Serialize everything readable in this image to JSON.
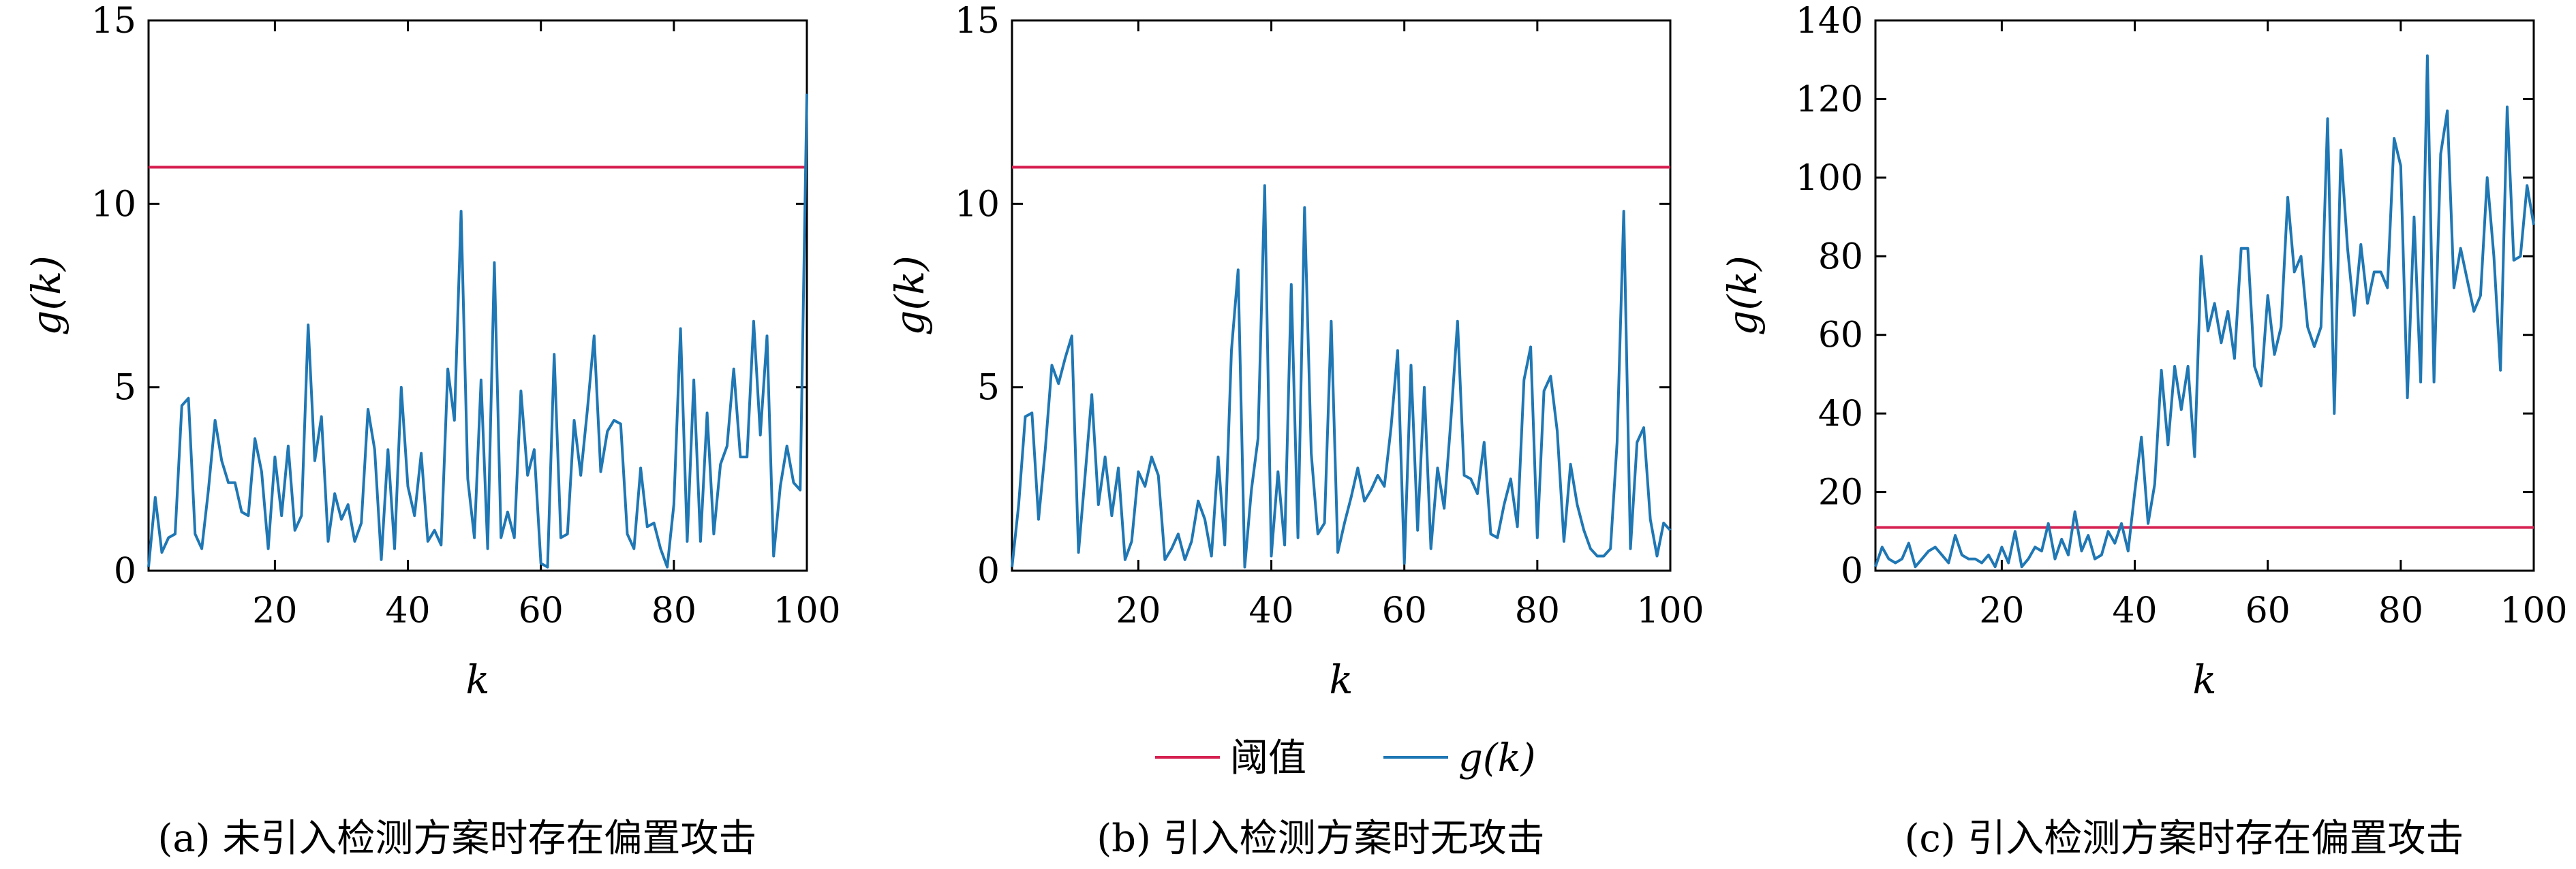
{
  "legend": {
    "threshold_label": "阈值",
    "g_label": "g(k)"
  },
  "colors": {
    "threshold": "#d62050",
    "g": "#1f77b4",
    "frame": "#000000"
  },
  "chart_data": [
    {
      "type": "line",
      "caption": "(a) 未引入检测方案时存在偏置攻击",
      "xlabel": "k",
      "ylabel": "g(k)",
      "xlim": [
        1,
        100
      ],
      "ylim": [
        0,
        15
      ],
      "xticks": [
        20,
        40,
        60,
        80,
        100
      ],
      "yticks": [
        0,
        5,
        10,
        15
      ],
      "threshold": 11,
      "x_start": 1,
      "series": [
        {
          "name": "g(k)",
          "values": [
            0.1,
            2.0,
            0.5,
            0.9,
            1.0,
            4.5,
            4.7,
            1.0,
            0.6,
            2.2,
            4.1,
            3.0,
            2.4,
            2.4,
            1.6,
            1.5,
            3.6,
            2.7,
            0.6,
            3.1,
            1.5,
            3.4,
            1.1,
            1.5,
            6.7,
            3.0,
            4.2,
            0.8,
            2.1,
            1.4,
            1.8,
            0.8,
            1.3,
            4.4,
            3.3,
            0.3,
            3.3,
            0.6,
            5.0,
            2.3,
            1.5,
            3.2,
            0.8,
            1.1,
            0.7,
            5.5,
            4.1,
            9.8,
            2.5,
            0.9,
            5.2,
            0.6,
            8.4,
            0.9,
            1.6,
            0.9,
            4.9,
            2.6,
            3.3,
            0.2,
            0.1,
            5.9,
            0.9,
            1.0,
            4.1,
            2.6,
            4.4,
            6.4,
            2.7,
            3.8,
            4.1,
            4.0,
            1.0,
            0.6,
            2.8,
            1.2,
            1.3,
            0.6,
            0.1,
            1.8,
            6.6,
            0.8,
            5.2,
            0.8,
            4.3,
            1.0,
            2.9,
            3.4,
            5.5,
            3.1,
            3.1,
            6.8,
            3.7,
            6.4,
            0.4,
            2.3,
            3.4,
            2.4,
            2.2,
            13.0
          ]
        }
      ]
    },
    {
      "type": "line",
      "caption": "(b) 引入检测方案时无攻击",
      "xlabel": "k",
      "ylabel": "g(k)",
      "xlim": [
        1,
        100
      ],
      "ylim": [
        0,
        15
      ],
      "xticks": [
        20,
        40,
        60,
        80,
        100
      ],
      "yticks": [
        0,
        5,
        10,
        15
      ],
      "threshold": 11,
      "x_start": 1,
      "series": [
        {
          "name": "g(k)",
          "values": [
            0.1,
            1.8,
            4.2,
            4.3,
            1.4,
            3.3,
            5.6,
            5.1,
            5.8,
            6.4,
            0.5,
            2.6,
            4.8,
            1.8,
            3.1,
            1.5,
            2.8,
            0.3,
            0.8,
            2.7,
            2.3,
            3.1,
            2.6,
            0.3,
            0.6,
            1.0,
            0.3,
            0.8,
            1.9,
            1.4,
            0.4,
            3.1,
            0.7,
            6.0,
            8.2,
            0.1,
            2.2,
            3.6,
            10.5,
            0.4,
            2.7,
            0.7,
            7.8,
            0.9,
            9.9,
            3.2,
            1.0,
            1.3,
            6.8,
            0.5,
            1.3,
            2.0,
            2.8,
            1.9,
            2.2,
            2.6,
            2.3,
            3.9,
            6.0,
            0.2,
            5.6,
            1.1,
            5.0,
            0.6,
            2.8,
            1.7,
            4.1,
            6.8,
            2.6,
            2.5,
            2.1,
            3.5,
            1.0,
            0.9,
            1.8,
            2.5,
            1.2,
            5.2,
            6.1,
            0.9,
            4.9,
            5.3,
            3.8,
            0.8,
            2.9,
            1.8,
            1.1,
            0.6,
            0.4,
            0.4,
            0.6,
            3.5,
            9.8,
            0.6,
            3.5,
            3.9,
            1.4,
            0.4,
            1.3,
            1.1
          ]
        }
      ]
    },
    {
      "type": "line",
      "caption": "(c) 引入检测方案时存在偏置攻击",
      "xlabel": "k",
      "ylabel": "g(k)",
      "xlim": [
        1,
        100
      ],
      "ylim": [
        0,
        140
      ],
      "xticks": [
        20,
        40,
        60,
        80,
        100
      ],
      "yticks": [
        0,
        20,
        40,
        60,
        80,
        100,
        120,
        140
      ],
      "threshold": 11,
      "x_start": 1,
      "series": [
        {
          "name": "g(k)",
          "values": [
            1,
            6,
            3,
            2,
            3,
            7,
            1,
            3,
            5,
            6,
            4,
            2,
            9,
            4,
            3,
            3,
            2,
            4,
            1,
            6,
            2,
            10,
            1,
            3,
            6,
            5,
            12,
            3,
            8,
            4,
            15,
            5,
            9,
            3,
            4,
            10,
            7,
            12,
            5,
            20,
            34,
            12,
            22,
            51,
            32,
            52,
            41,
            52,
            29,
            80,
            61,
            68,
            58,
            66,
            54,
            82,
            82,
            52,
            47,
            70,
            55,
            62,
            95,
            76,
            80,
            62,
            57,
            62,
            115,
            40,
            107,
            82,
            65,
            83,
            68,
            76,
            76,
            72,
            110,
            103,
            44,
            90,
            48,
            131,
            48,
            106,
            117,
            72,
            82,
            74,
            66,
            70,
            100,
            80,
            51,
            118,
            79,
            80,
            98,
            88
          ]
        }
      ]
    }
  ]
}
